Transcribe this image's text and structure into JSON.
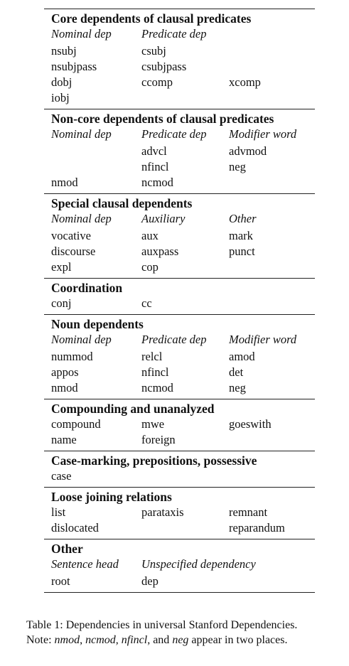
{
  "sections": [
    {
      "heading": "Core dependents of clausal predicates",
      "subheads": [
        "Nominal dep",
        "Predicate dep",
        ""
      ],
      "rows": [
        [
          "nsubj",
          "csubj",
          ""
        ],
        [
          "nsubjpass",
          "csubjpass",
          ""
        ],
        [
          "dobj",
          "ccomp",
          "xcomp"
        ],
        [
          "iobj",
          "",
          ""
        ]
      ]
    },
    {
      "heading": "Non-core dependents of clausal predicates",
      "subheads": [
        "Nominal dep",
        "Predicate dep",
        "Modifier word"
      ],
      "rows": [
        [
          "",
          "advcl",
          "advmod"
        ],
        [
          "",
          "nfincl",
          "neg"
        ],
        [
          "nmod",
          "ncmod",
          ""
        ]
      ]
    },
    {
      "heading": "Special clausal dependents",
      "subheads": [
        "Nominal dep",
        "Auxiliary",
        "Other"
      ],
      "rows": [
        [
          "vocative",
          "aux",
          "mark"
        ],
        [
          "discourse",
          "auxpass",
          "punct"
        ],
        [
          "expl",
          "cop",
          ""
        ]
      ]
    },
    {
      "heading": "Coordination",
      "subheads": [],
      "rows": [
        [
          "conj",
          "cc",
          ""
        ]
      ]
    },
    {
      "heading": "Noun dependents",
      "subheads": [
        "Nominal dep",
        "Predicate dep",
        "Modifier word"
      ],
      "rows": [
        [
          "nummod",
          "relcl",
          "amod"
        ],
        [
          "appos",
          "nfincl",
          "det"
        ],
        [
          "nmod",
          "ncmod",
          "neg"
        ]
      ]
    },
    {
      "heading": "Compounding and unanalyzed",
      "subheads": [],
      "rows": [
        [
          "compound",
          "mwe",
          "goeswith"
        ],
        [
          "name",
          "foreign",
          ""
        ]
      ]
    },
    {
      "heading": "Case-marking, prepositions, possessive",
      "subheads": [],
      "rows": [
        [
          "case",
          "",
          ""
        ]
      ]
    },
    {
      "heading": "Loose joining relations",
      "subheads": [],
      "rows": [
        [
          "list",
          "parataxis",
          "remnant"
        ],
        [
          "dislocated",
          "",
          "reparandum"
        ]
      ]
    },
    {
      "heading": "Other",
      "subheads": [
        "Sentence head",
        "Unspecified dependency",
        ""
      ],
      "rows": [
        [
          "root",
          "dep",
          ""
        ]
      ]
    }
  ],
  "caption": {
    "line1": "Table 1: Dependencies in universal Stanford Dependencies.",
    "note_prefix": "Note: ",
    "term1": "nmod",
    "sep1": ", ",
    "term2": "ncmod",
    "sep2": ", ",
    "term3": "nfincl",
    "sep3": ", and ",
    "term4": "neg",
    "note_suffix": " appear in two places."
  }
}
